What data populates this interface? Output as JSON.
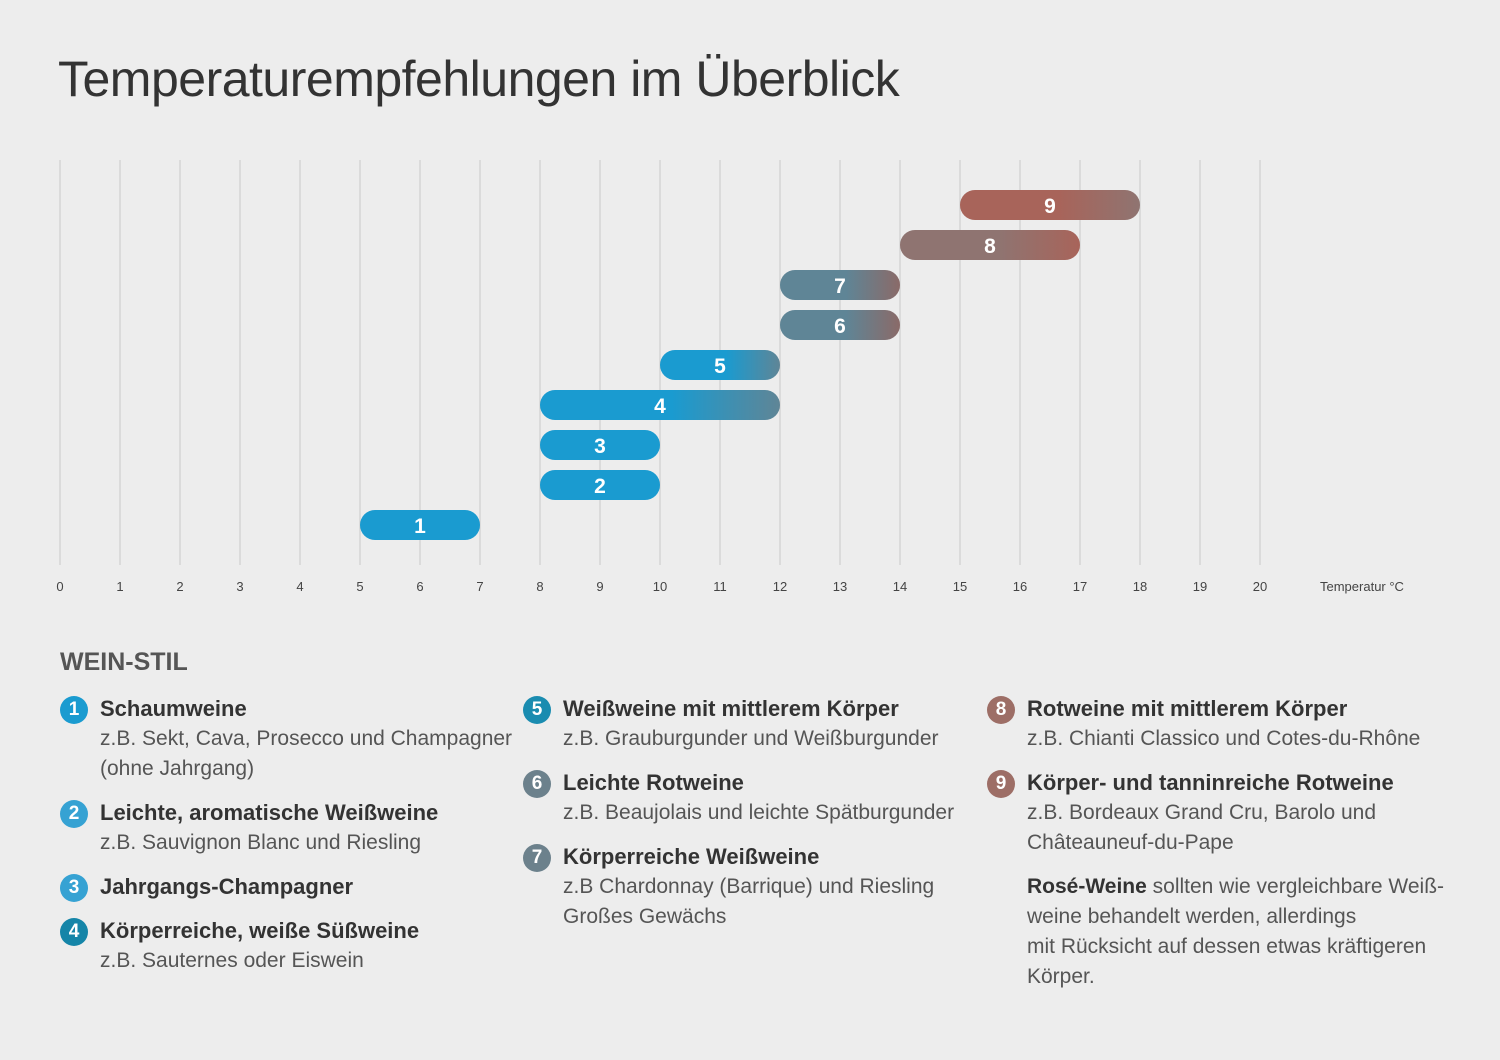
{
  "title": "Temperaturempfehlungen im Überblick",
  "legend_heading": "WEIN-STIL",
  "colors": {
    "blue": "#1a9bd0",
    "slate": "#6c818c",
    "red": "#a0665c",
    "grid": "#c9c9c9"
  },
  "chart_data": {
    "type": "range-bar",
    "xlabel": "Temperatur °C",
    "xlim": [
      0,
      20
    ],
    "x_ticks": [
      0,
      1,
      2,
      3,
      4,
      5,
      6,
      7,
      8,
      9,
      10,
      11,
      12,
      13,
      14,
      15,
      16,
      17,
      18,
      19,
      20
    ],
    "grid": true,
    "bars": [
      {
        "label": "1",
        "start": 5,
        "end": 7,
        "color": "#1a9bd0"
      },
      {
        "label": "2",
        "start": 8,
        "end": 10,
        "color": "#1a9bd0"
      },
      {
        "label": "3",
        "start": 8,
        "end": 10,
        "color": "#1a9bd0"
      },
      {
        "label": "4",
        "start": 8,
        "end": 12,
        "color": "#1a9bd0",
        "color_end": "#5f8596"
      },
      {
        "label": "5",
        "start": 10,
        "end": 12,
        "color": "#1a9bd0",
        "color_end": "#5f8596"
      },
      {
        "label": "6",
        "start": 12,
        "end": 14,
        "color": "#5f8596",
        "color_end": "#8a6a68"
      },
      {
        "label": "7",
        "start": 12,
        "end": 14,
        "color": "#5f8596",
        "color_end": "#8a6a68"
      },
      {
        "label": "8",
        "start": 14,
        "end": 17,
        "color": "#8f7471",
        "color_end": "#a8645a"
      },
      {
        "label": "9",
        "start": 15,
        "end": 18,
        "color": "#a8645a",
        "color_end": "#8f7471"
      }
    ]
  },
  "legend": {
    "columns": [
      [
        {
          "num": "1",
          "color": "#1a9bd0",
          "title": "Schaumweine",
          "desc_lines": [
            "z.B. Sekt, Cava, Prosecco und Champagner",
            "(ohne Jahrgang)"
          ]
        },
        {
          "num": "2",
          "color": "#36a2d3",
          "title": "Leichte, aromatische Weißweine",
          "desc_lines": [
            "z.B. Sauvignon Blanc und Riesling"
          ]
        },
        {
          "num": "3",
          "color": "#36a2d3",
          "title": "Jahrgangs-Champagner",
          "desc_lines": []
        },
        {
          "num": "4",
          "color": "#1585a8",
          "title": "Körperreiche, weiße Süßweine",
          "desc_lines": [
            "z.B. Sauternes oder Eiswein"
          ]
        }
      ],
      [
        {
          "num": "5",
          "color": "#1a8cb0",
          "title": "Weißweine mit mittlerem Körper",
          "desc_lines": [
            "z.B. Grauburgunder und Weißburgunder"
          ]
        },
        {
          "num": "6",
          "color": "#6c818c",
          "title": "Leichte Rotweine",
          "desc_lines": [
            "z.B. Beaujolais und leichte Spätburgunder"
          ]
        },
        {
          "num": "7",
          "color": "#6c818c",
          "title": "Körperreiche Weißweine",
          "desc_lines": [
            "z.B Chardonnay (Barrique) und Riesling",
            "Großes Gewächs"
          ]
        }
      ],
      [
        {
          "num": "8",
          "color": "#9d6e66",
          "title": "Rotweine mit mittlerem Körper",
          "desc_lines": [
            "z.B. Chianti Classico und Cotes-du-Rhône"
          ]
        },
        {
          "num": "9",
          "color": "#9d6e66",
          "title": "Körper- und tanninreiche Rotweine",
          "desc_lines": [
            "z.B. Bordeaux Grand Cru, Barolo und",
            "Châteauneuf-du-Pape"
          ]
        }
      ]
    ],
    "rose_note": {
      "bold": "Rosé-Weine",
      "lines": [
        " sollten wie vergleichbare Weiß-",
        "weine behandelt werden, allerdings",
        "mit Rücksicht auf dessen etwas kräftigeren",
        "Körper."
      ]
    }
  }
}
